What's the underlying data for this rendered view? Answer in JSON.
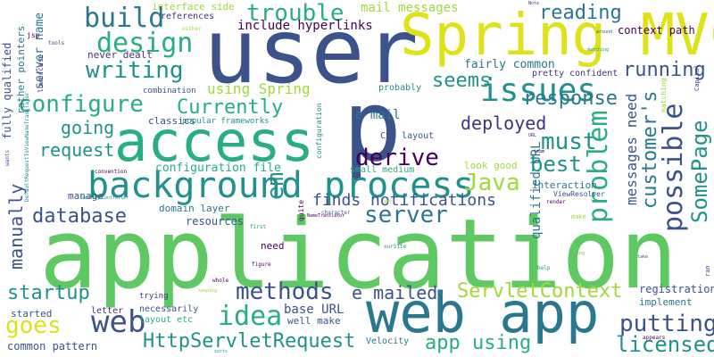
{
  "background_color": "#ffffff",
  "palette": {
    "navy": "#3b528b",
    "purple": "#46327e",
    "dark": "#440154",
    "teal": "#2a788e",
    "cyan": "#21918c",
    "green": "#28ae80",
    "mint": "#5ec962",
    "lime": "#a0da39",
    "yellow": "#dde318",
    "gray": "#414487"
  },
  "words": [
    {
      "key": "application",
      "text": "application"
    },
    {
      "key": "user",
      "text": "user"
    },
    {
      "key": "spring_mvc",
      "text": "Spring MVC"
    },
    {
      "key": "p",
      "text": "p"
    },
    {
      "key": "access",
      "text": "access"
    },
    {
      "key": "web_app",
      "text": "web app"
    },
    {
      "key": "background_process",
      "text": "background process"
    },
    {
      "key": "build",
      "text": "build"
    },
    {
      "key": "design",
      "text": "design"
    },
    {
      "key": "trouble",
      "text": "trouble"
    },
    {
      "key": "issues",
      "text": "issues"
    },
    {
      "key": "configure",
      "text": "configure"
    },
    {
      "key": "writing",
      "text": "writing"
    },
    {
      "key": "currently",
      "text": "Currently"
    },
    {
      "key": "going",
      "text": "going"
    },
    {
      "key": "request",
      "text": "request"
    },
    {
      "key": "derive",
      "text": "derive"
    },
    {
      "key": "best",
      "text": "best"
    },
    {
      "key": "java",
      "text": "Java"
    },
    {
      "key": "must",
      "text": "must"
    },
    {
      "key": "problem",
      "text": "problem"
    },
    {
      "key": "possible",
      "text": "possible"
    },
    {
      "key": "somepage",
      "text": "SomePage"
    },
    {
      "key": "customer_s",
      "text": "customer's"
    },
    {
      "key": "database",
      "text": "database"
    },
    {
      "key": "server",
      "text": "server"
    },
    {
      "key": "manually",
      "text": "manually"
    },
    {
      "key": "em",
      "text": "em"
    },
    {
      "key": "methods",
      "text": "methods"
    },
    {
      "key": "idea",
      "text": "idea"
    },
    {
      "key": "web",
      "text": "web"
    },
    {
      "key": "goes",
      "text": "goes"
    },
    {
      "key": "startup",
      "text": "startup"
    },
    {
      "key": "servletcontext",
      "text": "ServletContext"
    },
    {
      "key": "httpservletrequest",
      "text": "HttpServletRequest"
    },
    {
      "key": "putting",
      "text": "putting"
    },
    {
      "key": "licensed",
      "text": "licensed"
    },
    {
      "key": "app_using",
      "text": "app using"
    },
    {
      "key": "e_mailed",
      "text": "e mailed"
    },
    {
      "key": "running",
      "text": "running"
    },
    {
      "key": "reading",
      "text": "reading"
    },
    {
      "key": "seems",
      "text": "seems"
    },
    {
      "key": "response",
      "text": "response"
    },
    {
      "key": "deployed",
      "text": "deployed"
    },
    {
      "key": "e_mail",
      "text": "e mail"
    },
    {
      "key": "finds_notifications",
      "text": "finds notifications"
    },
    {
      "key": "using_spring",
      "text": "using Spring"
    },
    {
      "key": "mail_messages",
      "text": "mail messages"
    },
    {
      "key": "include_hyperlinks",
      "text": "include hyperlinks"
    },
    {
      "key": "context_path",
      "text": "context path"
    },
    {
      "key": "fairly_common",
      "text": "fairly common"
    },
    {
      "key": "configuration_file",
      "text": "configuration file"
    },
    {
      "key": "messages_need",
      "text": "messages need"
    },
    {
      "key": "fully_qualified",
      "text": "fully qualified"
    },
    {
      "key": "server_name",
      "text": "server name"
    },
    {
      "key": "rather_pointers",
      "text": "rather pointers"
    },
    {
      "key": "base_url",
      "text": "base URL"
    },
    {
      "key": "registration",
      "text": "registration"
    },
    {
      "key": "implement",
      "text": "implement"
    },
    {
      "key": "interaction",
      "text": "interaction"
    },
    {
      "key": "qualified_url",
      "text": "qualified URL"
    },
    {
      "key": "never_dealt",
      "text": "never dealt"
    },
    {
      "key": "references",
      "text": "references"
    },
    {
      "key": "interface_side",
      "text": "interface side"
    },
    {
      "key": "pretty_confident",
      "text": "pretty confident"
    },
    {
      "key": "probably",
      "text": "probably"
    },
    {
      "key": "classics",
      "text": "classics"
    },
    {
      "key": "popular_frameworks",
      "text": "popular frameworks"
    },
    {
      "key": "combination",
      "text": "combination"
    },
    {
      "key": "css_layout",
      "text": "CSS layout"
    },
    {
      "key": "small_medium",
      "text": "small medium"
    },
    {
      "key": "look_good",
      "text": "look good"
    },
    {
      "key": "domain_layer",
      "text": "domain layer"
    },
    {
      "key": "resources",
      "text": "resources"
    },
    {
      "key": "manage",
      "text": "manage"
    },
    {
      "key": "need",
      "text": "need"
    },
    {
      "key": "started",
      "text": "started"
    },
    {
      "key": "letter",
      "text": "letter"
    },
    {
      "key": "trying",
      "text": "trying"
    },
    {
      "key": "necessarily",
      "text": "necessarily"
    },
    {
      "key": "layout_etc",
      "text": "layout etc"
    },
    {
      "key": "well_make",
      "text": "well make"
    },
    {
      "key": "common_pattern",
      "text": "common pattern"
    },
    {
      "key": "velocity",
      "text": "Velocity"
    },
    {
      "key": "viewresolver",
      "text": "ViewResolver"
    },
    {
      "key": "configuration",
      "text": "configuration"
    },
    {
      "key": "lowercase",
      "text": "lowercase"
    },
    {
      "key": "tools",
      "text": "tools"
    },
    {
      "key": "jsp",
      "text": "jsp"
    },
    {
      "key": "either",
      "text": "either"
    },
    {
      "key": "convention",
      "text": "convention"
    },
    {
      "key": "somepagecontroller",
      "text": "SomePageController"
    },
    {
      "key": "namettranslator",
      "text": "NameTranslator"
    },
    {
      "key": "character",
      "text": "character"
    },
    {
      "key": "quite",
      "text": "quite"
    },
    {
      "key": "first",
      "text": "first"
    },
    {
      "key": "render",
      "text": "render"
    },
    {
      "key": "make",
      "text": "make"
    },
    {
      "key": "oursite",
      "text": "ourSite"
    },
    {
      "key": "figure",
      "text": "figure"
    },
    {
      "key": "whole",
      "text": "whole"
    },
    {
      "key": "keeping",
      "text": "keeping"
    },
    {
      "key": "help",
      "text": "help"
    },
    {
      "key": "thing",
      "text": "thing"
    },
    {
      "key": "take",
      "text": "take"
    },
    {
      "key": "appears",
      "text": "appears"
    },
    {
      "key": "sorts",
      "text": "sorts"
    },
    {
      "key": "note",
      "text": "Note"
    },
    {
      "key": "around",
      "text": "around"
    },
    {
      "key": "matching",
      "text": "matching"
    },
    {
      "key": "capital",
      "text": "Capital"
    },
    {
      "key": "url",
      "text": "URL"
    },
    {
      "key": "team",
      "text": "team"
    },
    {
      "key": "ran",
      "text": "ran"
    },
    {
      "key": "defaultrequest",
      "text": "DefaultRequestToViewNameTranslator"
    },
    {
      "key": "wants",
      "text": "wants"
    },
    {
      "key": "way",
      "text": "way"
    },
    {
      "key": "out",
      "text": "out"
    }
  ]
}
